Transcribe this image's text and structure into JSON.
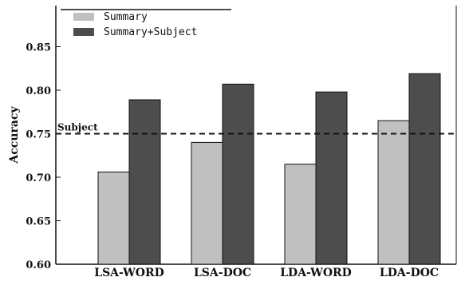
{
  "chart_data": {
    "type": "bar",
    "categories": [
      "LSA-WORD",
      "LSA-DOC",
      "LDA-WORD",
      "LDA-DOC"
    ],
    "series": [
      {
        "name": "Summary",
        "values": [
          0.706,
          0.74,
          0.715,
          0.765
        ]
      },
      {
        "name": "Summary+Subject",
        "values": [
          0.789,
          0.807,
          0.798,
          0.819
        ]
      }
    ],
    "ylabel": "Accuracy",
    "xlabel": "",
    "ylim": [
      0.6,
      0.9
    ],
    "yticks": [
      "0.60",
      "0.65",
      "0.70",
      "0.75",
      "0.80",
      "0.85"
    ],
    "reference_line": {
      "label": "Subject",
      "value": 0.75,
      "style": "dashed"
    },
    "legend_position": "top-left",
    "grid": false
  },
  "colors": {
    "summary": "#c0c0c0",
    "summary_subject": "#4d4d4d",
    "axis": "#111111",
    "reference": "#111111"
  }
}
